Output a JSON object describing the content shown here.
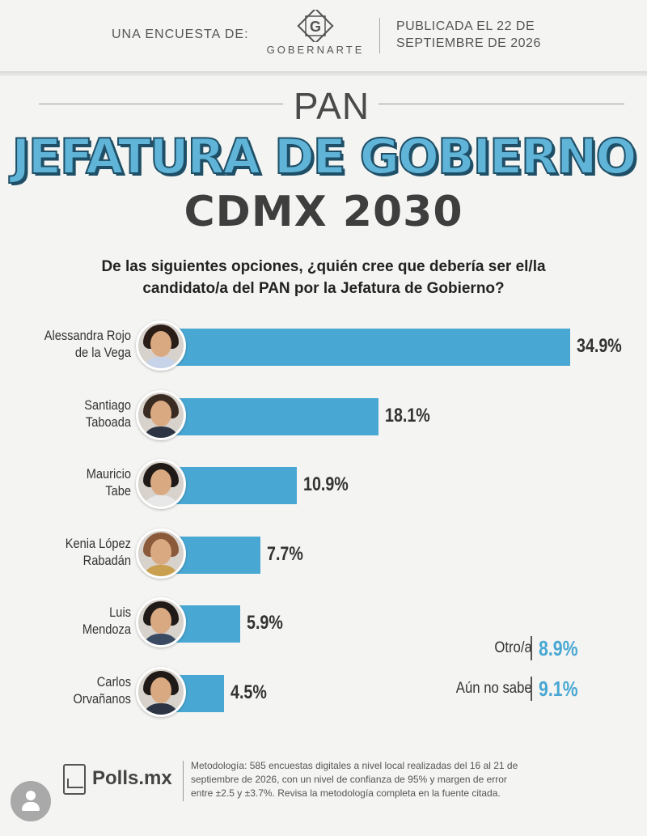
{
  "header": {
    "intro": "UNA ENCUESTA DE:",
    "logo_letter": "G",
    "logo_wordmark": "GOBERNARTE",
    "published_line1": "PUBLICADA EL 22 DE",
    "published_line2": "SEPTIEMBRE DE 2026"
  },
  "titles": {
    "party": "PAN",
    "main": "JEFATURA DE GOBIERNO",
    "sub": "CDMX 2030",
    "question_line1": "De las siguientes opciones, ¿quién cree que debería ser el/la",
    "question_line2": "candidato/a del PAN por la Jefatura de Gobierno?"
  },
  "chart_data": {
    "type": "bar",
    "orientation": "horizontal",
    "categories": [
      [
        "Alessandra Rojo",
        "de la Vega"
      ],
      [
        "Santiago",
        "Taboada"
      ],
      [
        "Mauricio",
        "Tabe"
      ],
      [
        "Kenia López",
        "Rabadán"
      ],
      [
        "Luis",
        "Mendoza"
      ],
      [
        "Carlos",
        "Orvañanos"
      ]
    ],
    "values": [
      34.9,
      18.1,
      10.9,
      7.7,
      5.9,
      4.5
    ],
    "value_labels": [
      "34.9%",
      "18.1%",
      "10.9%",
      "7.7%",
      "5.9%",
      "4.5%"
    ],
    "bar_color": "#49a8d3",
    "xlim": [
      0,
      35
    ],
    "other": [
      {
        "label": "Otro/a",
        "value": 8.9,
        "display": "8.9%"
      },
      {
        "label": "Aún no sabe",
        "value": 9.1,
        "display": "9.1%"
      }
    ]
  },
  "colors": {
    "accent": "#49a8d3",
    "title_fill": "#5fb4d8",
    "title_outline": "#1f4f66"
  },
  "footer": {
    "brand": "Polls.mx",
    "methodology_line1": "Metodología: 585 encuestas digitales a nivel local realizadas del 16 al 21 de",
    "methodology_line2": "septiembre de 2026, con un nivel de confianza de 95% y margen de error",
    "methodology_line3": "entre ±2.5 y ±3.7%. Revisa la metodología completa en la fuente citada.",
    "user_icon": "user-avatar-icon"
  }
}
